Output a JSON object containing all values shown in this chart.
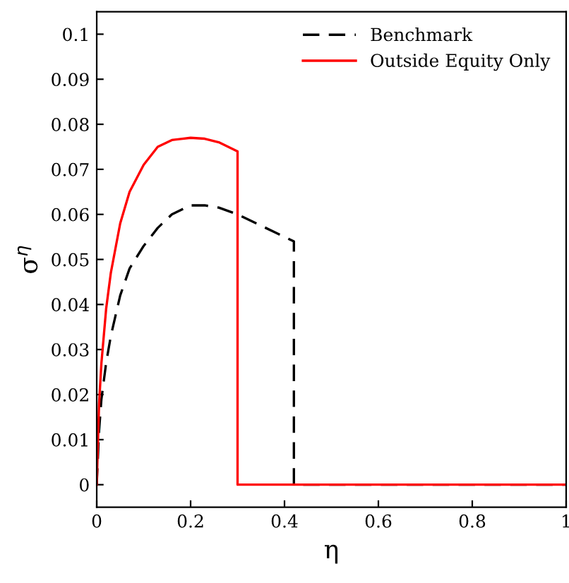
{
  "chart_data": {
    "type": "line",
    "xlabel": "η",
    "ylabel": "σ$^{η}$",
    "xlim": [
      0,
      1
    ],
    "ylim": [
      -0.005,
      0.105
    ],
    "xticks": [
      0,
      0.2,
      0.4,
      0.6,
      0.8,
      1
    ],
    "yticks": [
      0,
      0.01,
      0.02,
      0.03,
      0.04,
      0.05,
      0.06,
      0.07,
      0.08,
      0.09,
      0.1
    ],
    "grid": false,
    "legend": "top right",
    "marker": "none",
    "series": [
      {
        "name": "Benchmark",
        "color": "#000000",
        "line_style": "dashed",
        "x": [
          0,
          0.005,
          0.01,
          0.02,
          0.03,
          0.05,
          0.07,
          0.1,
          0.13,
          0.16,
          0.2,
          0.23,
          0.26,
          0.3,
          0.34,
          0.38,
          0.42,
          0.42,
          1
        ],
        "values": [
          0,
          0.012,
          0.019,
          0.027,
          0.033,
          0.042,
          0.048,
          0.053,
          0.057,
          0.06,
          0.062,
          0.062,
          0.0615,
          0.06,
          0.058,
          0.056,
          0.054,
          0,
          0
        ]
      },
      {
        "name": "Outside Equity Only",
        "color": "#ff0000",
        "line_style": "solid",
        "x": [
          0,
          0.005,
          0.01,
          0.02,
          0.03,
          0.05,
          0.07,
          0.1,
          0.13,
          0.16,
          0.2,
          0.23,
          0.26,
          0.3,
          0.3,
          1
        ],
        "values": [
          0,
          0.018,
          0.027,
          0.039,
          0.047,
          0.058,
          0.065,
          0.071,
          0.075,
          0.0765,
          0.077,
          0.0768,
          0.076,
          0.074,
          0,
          0
        ]
      }
    ]
  }
}
